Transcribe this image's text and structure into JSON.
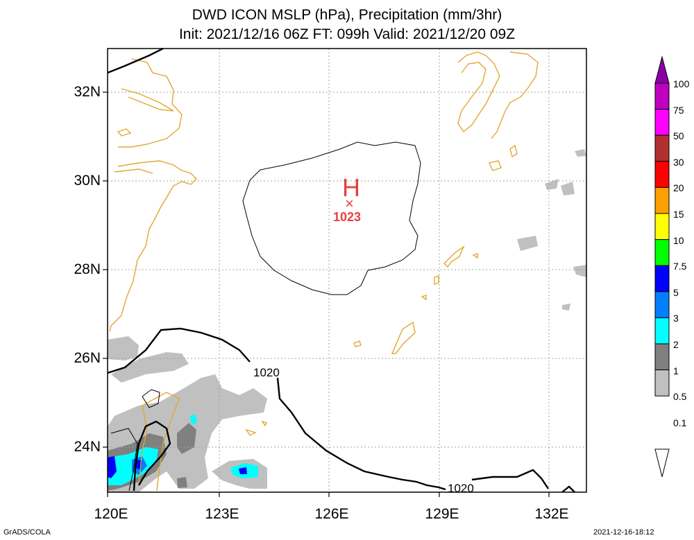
{
  "title": {
    "line1": "DWD ICON MSLP (hPa), Precipitation (mm/3hr)",
    "line2": "Init: 2021/12/16 06Z  FT: 099h  Valid: 2021/12/20 09Z"
  },
  "axes": {
    "lat_labels": [
      "32N",
      "30N",
      "28N",
      "26N",
      "24N"
    ],
    "lon_labels": [
      "120E",
      "123E",
      "126E",
      "129E",
      "132E"
    ]
  },
  "pressure_center": {
    "symbol": "H",
    "marker": "×",
    "value": "1023",
    "color": "#e84040"
  },
  "contour_labels": [
    "1020",
    "1020"
  ],
  "colorbar": {
    "labels": [
      "100",
      "75",
      "50",
      "30",
      "20",
      "15",
      "10",
      "7.5",
      "5",
      "3",
      "2",
      "1",
      "0.5",
      "0.1"
    ],
    "colors": [
      "#8a00a8",
      "#c000c0",
      "#ff00ff",
      "#b03030",
      "#ff0000",
      "#ffa000",
      "#ffff00",
      "#00ff00",
      "#0000ff",
      "#0080ff",
      "#00ffff",
      "#808080",
      "#c0c0c0",
      "#ffffff"
    ]
  },
  "footer": {
    "left": "GrADS/COLA",
    "right": "2021-12-16-18:12"
  }
}
